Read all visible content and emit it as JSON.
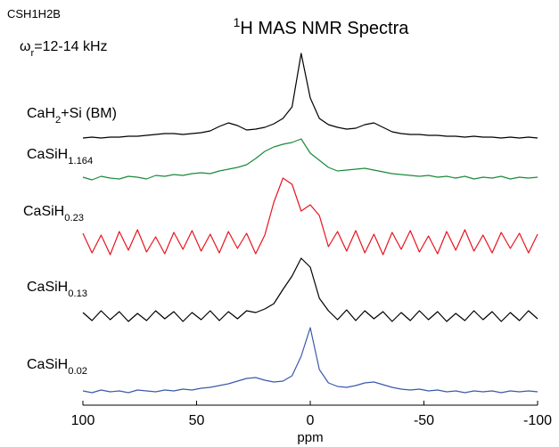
{
  "chart_data": {
    "type": "line",
    "title": "1H MAS NMR Spectra",
    "corner_label": "CSH1H2B",
    "annotation": "ωr=12-14 kHz",
    "xlabel": "ppm",
    "xlim": [
      100,
      -100
    ],
    "xticks": [
      100,
      50,
      0,
      -50,
      -100
    ],
    "x": [
      100,
      96,
      92,
      88,
      84,
      80,
      76,
      72,
      68,
      64,
      60,
      56,
      52,
      48,
      44,
      40,
      36,
      32,
      28,
      24,
      20,
      16,
      12,
      8,
      4,
      0,
      -4,
      -8,
      -12,
      -16,
      -20,
      -24,
      -28,
      -32,
      -36,
      -40,
      -44,
      -48,
      -52,
      -56,
      -60,
      -64,
      -68,
      -72,
      -76,
      -80,
      -84,
      -88,
      -92,
      -96,
      -100
    ],
    "series": [
      {
        "name": "CaH2+Si (BM)",
        "color": "#000000",
        "values": [
          0,
          1,
          0,
          1,
          1,
          2,
          2,
          3,
          4,
          5,
          5,
          4,
          5,
          6,
          8,
          13,
          17,
          14,
          9,
          10,
          12,
          16,
          22,
          35,
          95,
          45,
          22,
          15,
          12,
          10,
          11,
          15,
          17,
          12,
          7,
          5,
          4,
          4,
          3,
          3,
          2,
          2,
          1,
          2,
          1,
          1,
          0,
          1,
          0,
          1,
          0
        ]
      },
      {
        "name": "CaSiH1.164",
        "color": "#1a8a3a",
        "values": [
          1,
          -2,
          2,
          0,
          -1,
          2,
          1,
          -1,
          3,
          2,
          4,
          3,
          5,
          6,
          5,
          8,
          10,
          12,
          15,
          22,
          30,
          35,
          38,
          40,
          44,
          28,
          20,
          12,
          8,
          9,
          10,
          11,
          9,
          7,
          5,
          4,
          3,
          2,
          3,
          1,
          2,
          0,
          2,
          -1,
          1,
          0,
          2,
          -1,
          1,
          0,
          1
        ]
      },
      {
        "name": "CaSiH0.23",
        "color": "#e8141e",
        "values": [
          10,
          -12,
          8,
          -14,
          12,
          -9,
          14,
          -11,
          6,
          -13,
          11,
          -8,
          13,
          -10,
          9,
          -12,
          12,
          -7,
          10,
          -13,
          8,
          45,
          72,
          65,
          35,
          42,
          30,
          -5,
          12,
          -10,
          13,
          -12,
          9,
          -14,
          11,
          -8,
          13,
          -11,
          7,
          -13,
          12,
          -9,
          14,
          -10,
          8,
          -12,
          11,
          -7,
          10,
          -12,
          9
        ]
      },
      {
        "name": "CaSiH0.13",
        "color": "#000000",
        "values": [
          4,
          -5,
          6,
          -4,
          5,
          -6,
          3,
          -5,
          6,
          -3,
          5,
          -6,
          4,
          -4,
          6,
          -5,
          5,
          -3,
          6,
          4,
          8,
          14,
          30,
          45,
          65,
          55,
          20,
          6,
          -4,
          7,
          -5,
          6,
          -3,
          5,
          -6,
          4,
          -5,
          6,
          -4,
          5,
          -6,
          3,
          -5,
          6,
          -4,
          5,
          -6,
          4,
          -5,
          6,
          -3
        ]
      },
      {
        "name": "CaSiH0.02",
        "color": "#3a5aa8",
        "values": [
          1,
          -1,
          2,
          0,
          1,
          -1,
          2,
          1,
          0,
          2,
          1,
          3,
          2,
          4,
          5,
          7,
          9,
          12,
          15,
          16,
          13,
          11,
          12,
          18,
          40,
          72,
          25,
          10,
          6,
          5,
          7,
          10,
          11,
          8,
          5,
          3,
          2,
          3,
          1,
          2,
          0,
          1,
          -1,
          1,
          0,
          1,
          -1,
          1,
          0,
          1,
          0
        ]
      }
    ]
  }
}
